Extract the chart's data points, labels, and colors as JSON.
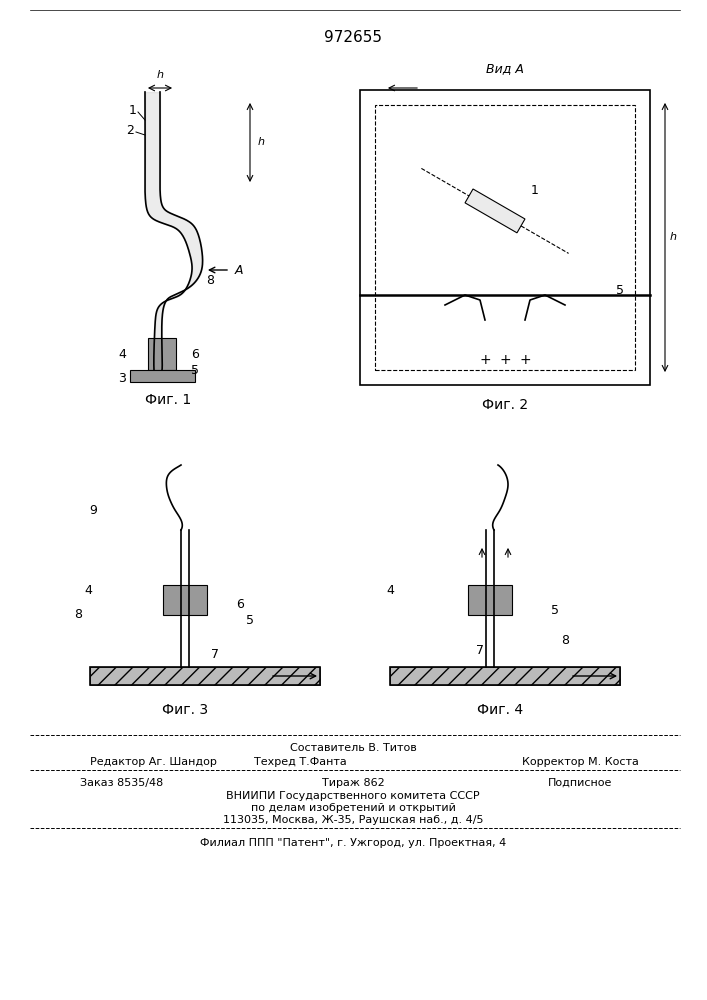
{
  "patent_number": "972655",
  "bg_color": "#ffffff",
  "line_color": "#000000",
  "fig_width": 7.07,
  "fig_height": 10.0,
  "footer": {
    "line1_left": "Составитель В. Титов",
    "line2_left": "Редактор Аг. Шандор",
    "line2_center": "Техред Т.Фанта",
    "line2_right": "Корректор М. Коста",
    "line3_left": "Заказ 8535/48",
    "line3_center": "Тираж 862",
    "line3_right": "Подписное",
    "line4": "ВНИИПИ Государственного комитета СССР",
    "line5": "по делам изобретений и открытий",
    "line6": "113035, Москва, Ж-35, Раушская наб., д. 4/5",
    "line7": "Филиал ППП \"Патент\", г. Ужгород, ул. Проектная, 4"
  },
  "fig_labels": [
    "Фиг. 1",
    "Фиг. 2",
    "Фиг. 3",
    "Фиг. 4"
  ],
  "view_label": "Вид А"
}
